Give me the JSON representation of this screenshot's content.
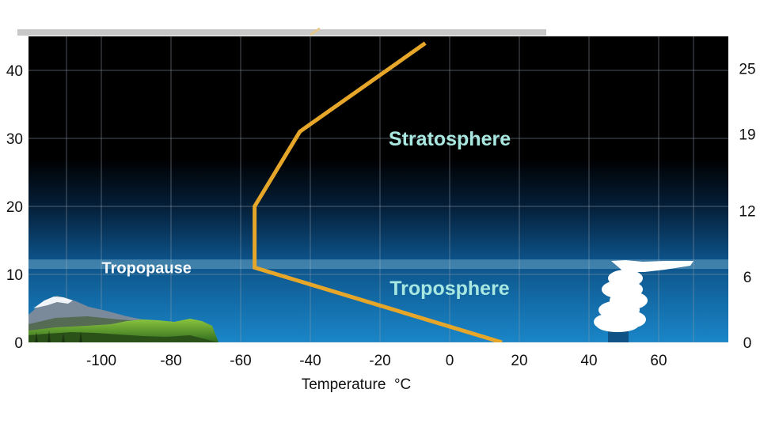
{
  "chart_data": {
    "type": "line",
    "title": "",
    "xlabel": "Temperature  °C",
    "ylabel": "",
    "y2label": "",
    "xlim": [
      -120,
      80
    ],
    "ylim": [
      0,
      44
    ],
    "y2lim": [
      0,
      27.3
    ],
    "x_ticks": [
      "-100",
      "-80",
      "-60",
      "-40",
      "-20",
      "0",
      "20",
      "40",
      "60"
    ],
    "x_tick_values": [
      -100,
      -80,
      -60,
      -40,
      -20,
      0,
      20,
      40,
      60
    ],
    "y_ticks": [
      "0",
      "10",
      "20",
      "30",
      "40"
    ],
    "y_tick_values": [
      0,
      10,
      20,
      30,
      40
    ],
    "y2_ticks": [
      "0",
      "6",
      "12",
      "19",
      "25"
    ],
    "y2_tick_values": [
      0,
      6,
      12,
      19,
      25
    ],
    "grid": true,
    "series": [
      {
        "name": "",
        "color": "#e6a62a",
        "points": [
          {
            "x": 15,
            "y": 0
          },
          {
            "x": -56,
            "y": 11
          },
          {
            "x": -56,
            "y": 20
          },
          {
            "x": -43,
            "y": 31
          },
          {
            "x": -7,
            "y": 44
          }
        ]
      }
    ],
    "annotations": [
      {
        "text": "Stratosphere",
        "x": 0,
        "y": 30
      },
      {
        "text": "Troposphere",
        "x": 0,
        "y": 8
      },
      {
        "text": "Tropopause",
        "x": -87,
        "y": 11
      }
    ],
    "tropopause_altitude": 11.5,
    "colors": {
      "sky_top": "#000000",
      "sky_bottom": "#1a86c8",
      "profile_line": "#e6a62a",
      "grid": "#8a98a8",
      "tropopause_band": "#9fd4e8"
    }
  }
}
